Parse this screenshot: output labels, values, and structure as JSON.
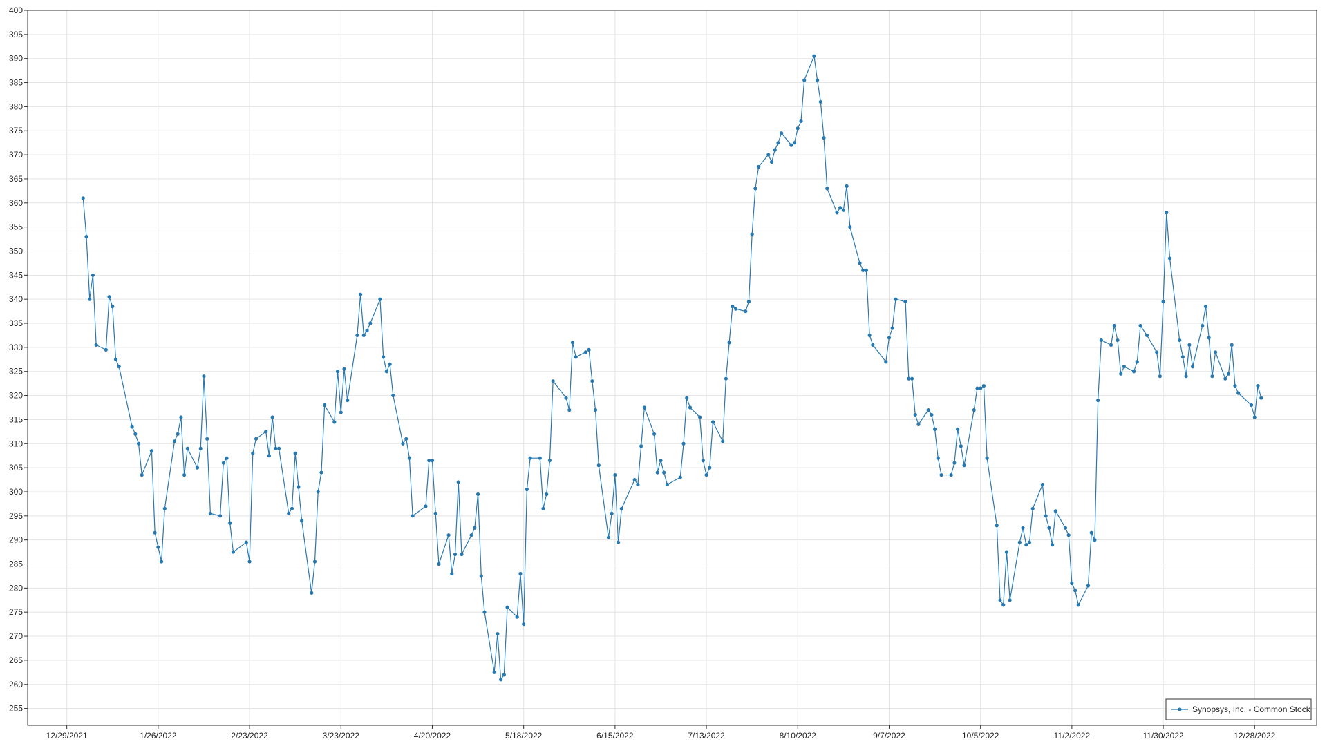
{
  "chart_data": {
    "type": "line",
    "x": [
      "1/3/2022",
      "1/4/2022",
      "1/5/2022",
      "1/6/2022",
      "1/7/2022",
      "1/10/2022",
      "1/11/2022",
      "1/12/2022",
      "1/13/2022",
      "1/14/2022",
      "1/18/2022",
      "1/19/2022",
      "1/20/2022",
      "1/21/2022",
      "1/24/2022",
      "1/25/2022",
      "1/26/2022",
      "1/27/2022",
      "1/28/2022",
      "1/31/2022",
      "2/1/2022",
      "2/2/2022",
      "2/3/2022",
      "2/4/2022",
      "2/7/2022",
      "2/8/2022",
      "2/9/2022",
      "2/10/2022",
      "2/11/2022",
      "2/14/2022",
      "2/15/2022",
      "2/16/2022",
      "2/17/2022",
      "2/18/2022",
      "2/22/2022",
      "2/23/2022",
      "2/24/2022",
      "2/25/2022",
      "2/28/2022",
      "3/1/2022",
      "3/2/2022",
      "3/3/2022",
      "3/4/2022",
      "3/7/2022",
      "3/8/2022",
      "3/9/2022",
      "3/10/2022",
      "3/11/2022",
      "3/14/2022",
      "3/15/2022",
      "3/16/2022",
      "3/17/2022",
      "3/18/2022",
      "3/21/2022",
      "3/22/2022",
      "3/23/2022",
      "3/24/2022",
      "3/25/2022",
      "3/28/2022",
      "3/29/2022",
      "3/30/2022",
      "3/31/2022",
      "4/1/2022",
      "4/4/2022",
      "4/5/2022",
      "4/6/2022",
      "4/7/2022",
      "4/8/2022",
      "4/11/2022",
      "4/12/2022",
      "4/13/2022",
      "4/14/2022",
      "4/18/2022",
      "4/19/2022",
      "4/20/2022",
      "4/21/2022",
      "4/22/2022",
      "4/25/2022",
      "4/26/2022",
      "4/27/2022",
      "4/28/2022",
      "4/29/2022",
      "5/2/2022",
      "5/3/2022",
      "5/4/2022",
      "5/5/2022",
      "5/6/2022",
      "5/9/2022",
      "5/10/2022",
      "5/11/2022",
      "5/12/2022",
      "5/13/2022",
      "5/16/2022",
      "5/17/2022",
      "5/18/2022",
      "5/19/2022",
      "5/20/2022",
      "5/23/2022",
      "5/24/2022",
      "5/25/2022",
      "5/26/2022",
      "5/27/2022",
      "5/31/2022",
      "6/1/2022",
      "6/2/2022",
      "6/3/2022",
      "6/6/2022",
      "6/7/2022",
      "6/8/2022",
      "6/9/2022",
      "6/10/2022",
      "6/13/2022",
      "6/14/2022",
      "6/15/2022",
      "6/16/2022",
      "6/17/2022",
      "6/21/2022",
      "6/22/2022",
      "6/23/2022",
      "6/24/2022",
      "6/27/2022",
      "6/28/2022",
      "6/29/2022",
      "6/30/2022",
      "7/1/2022",
      "7/5/2022",
      "7/6/2022",
      "7/7/2022",
      "7/8/2022",
      "7/11/2022",
      "7/12/2022",
      "7/13/2022",
      "7/14/2022",
      "7/15/2022",
      "7/18/2022",
      "7/19/2022",
      "7/20/2022",
      "7/21/2022",
      "7/22/2022",
      "7/25/2022",
      "7/26/2022",
      "7/27/2022",
      "7/28/2022",
      "7/29/2022",
      "8/1/2022",
      "8/2/2022",
      "8/3/2022",
      "8/4/2022",
      "8/5/2022",
      "8/8/2022",
      "8/9/2022",
      "8/10/2022",
      "8/11/2022",
      "8/12/2022",
      "8/15/2022",
      "8/16/2022",
      "8/17/2022",
      "8/18/2022",
      "8/19/2022",
      "8/22/2022",
      "8/23/2022",
      "8/24/2022",
      "8/25/2022",
      "8/26/2022",
      "8/29/2022",
      "8/30/2022",
      "8/31/2022",
      "9/1/2022",
      "9/2/2022",
      "9/6/2022",
      "9/7/2022",
      "9/8/2022",
      "9/9/2022",
      "9/12/2022",
      "9/13/2022",
      "9/14/2022",
      "9/15/2022",
      "9/16/2022",
      "9/19/2022",
      "9/20/2022",
      "9/21/2022",
      "9/22/2022",
      "9/23/2022",
      "9/26/2022",
      "9/27/2022",
      "9/28/2022",
      "9/29/2022",
      "9/30/2022",
      "10/3/2022",
      "10/4/2022",
      "10/5/2022",
      "10/6/2022",
      "10/7/2022",
      "10/10/2022",
      "10/11/2022",
      "10/12/2022",
      "10/13/2022",
      "10/14/2022",
      "10/17/2022",
      "10/18/2022",
      "10/19/2022",
      "10/20/2022",
      "10/21/2022",
      "10/24/2022",
      "10/25/2022",
      "10/26/2022",
      "10/27/2022",
      "10/28/2022",
      "10/31/2022",
      "11/1/2022",
      "11/2/2022",
      "11/3/2022",
      "11/4/2022",
      "11/7/2022",
      "11/8/2022",
      "11/9/2022",
      "11/10/2022",
      "11/11/2022",
      "11/14/2022",
      "11/15/2022",
      "11/16/2022",
      "11/17/2022",
      "11/18/2022",
      "11/21/2022",
      "11/22/2022",
      "11/23/2022",
      "11/25/2022",
      "11/28/2022",
      "11/29/2022",
      "11/30/2022",
      "12/1/2022",
      "12/2/2022",
      "12/5/2022",
      "12/6/2022",
      "12/7/2022",
      "12/8/2022",
      "12/9/2022",
      "12/12/2022",
      "12/13/2022",
      "12/14/2022",
      "12/15/2022",
      "12/16/2022",
      "12/19/2022",
      "12/20/2022",
      "12/21/2022",
      "12/22/2022",
      "12/23/2022",
      "12/27/2022",
      "12/28/2022",
      "12/29/2022",
      "12/30/2022"
    ],
    "series": [
      {
        "name": "Synopsys, Inc. - Common Stock",
        "color": "#2878b0",
        "values": [
          361,
          353,
          340,
          345,
          330.5,
          329.5,
          340.5,
          338.5,
          327.5,
          326,
          313.5,
          312,
          310,
          303.5,
          308.5,
          291.5,
          288.5,
          285.5,
          296.5,
          310.5,
          312,
          315.5,
          303.5,
          309,
          305,
          309,
          324,
          311,
          295.5,
          295,
          306,
          307,
          293.5,
          287.5,
          289.5,
          285.5,
          308,
          311,
          312.5,
          307.5,
          315.5,
          309,
          309,
          295.5,
          296.5,
          308,
          301,
          294,
          279,
          285.5,
          300,
          304,
          318,
          314.5,
          325,
          316.5,
          325.5,
          319,
          332.5,
          341,
          332.5,
          333.5,
          335,
          340,
          328,
          325,
          326.5,
          320,
          310,
          311,
          307,
          295,
          297,
          306.5,
          306.5,
          295.5,
          285,
          291,
          283,
          287,
          302,
          287,
          291,
          292.5,
          299.5,
          282.5,
          275,
          262.5,
          270.5,
          261,
          262,
          276,
          274,
          283,
          272.5,
          300.5,
          307,
          307,
          296.5,
          299.5,
          306.5,
          323,
          319.5,
          317,
          331,
          328,
          329,
          329.5,
          323,
          317,
          305.5,
          290.5,
          295.5,
          303.5,
          289.5,
          296.5,
          302.5,
          301.5,
          309.5,
          317.5,
          312,
          304,
          306.5,
          304,
          301.5,
          303,
          310,
          319.5,
          317.5,
          315.5,
          306.5,
          303.5,
          305,
          314.5,
          310.5,
          323.5,
          331,
          338.5,
          338,
          337.5,
          339.5,
          353.5,
          363,
          367.5,
          370,
          368.5,
          371,
          372.5,
          374.5,
          372,
          372.5,
          375.5,
          377,
          385.5,
          390.5,
          385.5,
          381,
          373.5,
          363,
          358,
          359,
          358.5,
          363.5,
          355,
          347.5,
          346,
          346,
          332.5,
          330.5,
          327,
          332,
          334,
          340,
          339.5,
          323.5,
          323.5,
          316,
          314,
          317,
          316,
          313,
          307,
          303.5,
          303.5,
          306,
          313,
          309.5,
          305.5,
          317,
          321.5,
          321.5,
          322,
          307,
          293,
          277.5,
          276.5,
          287.5,
          277.5,
          289.5,
          292.5,
          289,
          289.5,
          296.5,
          301.5,
          295,
          292.5,
          289,
          296,
          292.5,
          291,
          281,
          279.5,
          276.5,
          280.5,
          291.5,
          290,
          319,
          331.5,
          330.5,
          334.5,
          331.5,
          324.5,
          326,
          325,
          327,
          334.5,
          332.5,
          329,
          324,
          339.5,
          358,
          348.5,
          331.5,
          328,
          324,
          330.5,
          326,
          334.5,
          338.5,
          332,
          324,
          329,
          323.5,
          324.5,
          330.5,
          322,
          320.5,
          318,
          315.5,
          322,
          319.5
        ]
      }
    ],
    "xlim": [
      "12/17/2021",
      "1/16/2023"
    ],
    "xticks": [
      "12/29/2021",
      "1/26/2022",
      "2/23/2022",
      "3/23/2022",
      "4/20/2022",
      "5/18/2022",
      "6/15/2022",
      "7/13/2022",
      "8/10/2022",
      "9/7/2022",
      "10/5/2022",
      "11/2/2022",
      "11/30/2022",
      "12/28/2022"
    ],
    "ylim": [
      251.5,
      400
    ],
    "yticks": [
      255,
      260,
      265,
      270,
      275,
      280,
      285,
      290,
      295,
      300,
      305,
      310,
      315,
      320,
      325,
      330,
      335,
      340,
      345,
      350,
      355,
      360,
      365,
      370,
      375,
      380,
      385,
      390,
      395,
      400
    ],
    "grid": true,
    "legend": "lower right"
  }
}
